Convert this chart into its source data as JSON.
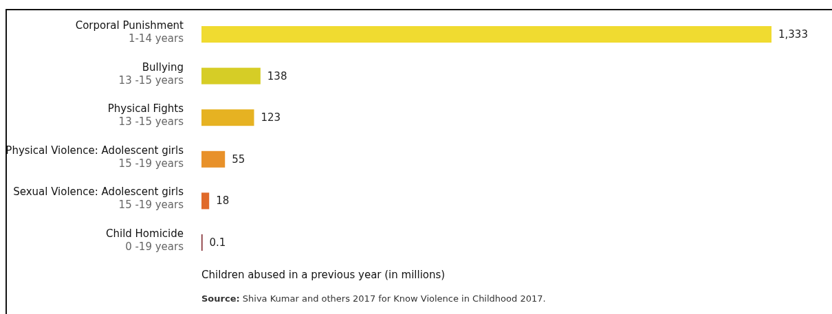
{
  "chart_data": {
    "type": "bar",
    "orientation": "horizontal",
    "categories": [
      "Corporal Punishment\n1-14 years",
      "Bullying\n13 -15 years",
      "Physical Fights\n13 -15 years",
      "Physical Violence: Adolescent girls\n15 -19 years",
      "Sexual Violence: Adolescent girls\n15 -19 years",
      "Child Homicide\n0 -19 years"
    ],
    "values": [
      1333,
      138,
      123,
      55,
      18,
      0.1
    ],
    "colors": [
      "#f0db30",
      "#d6cd26",
      "#e6b222",
      "#e8912a",
      "#e06a2a",
      "#7a1e24"
    ],
    "value_labels": [
      "1,333",
      "138",
      "123",
      "55",
      "18",
      "0.1"
    ],
    "xlabel": "Children abused in a previous year (in millions)",
    "annotations": [
      "Source: Shiva Kumar and others 2017 for Know Violence in Childhood 2017."
    ]
  }
}
